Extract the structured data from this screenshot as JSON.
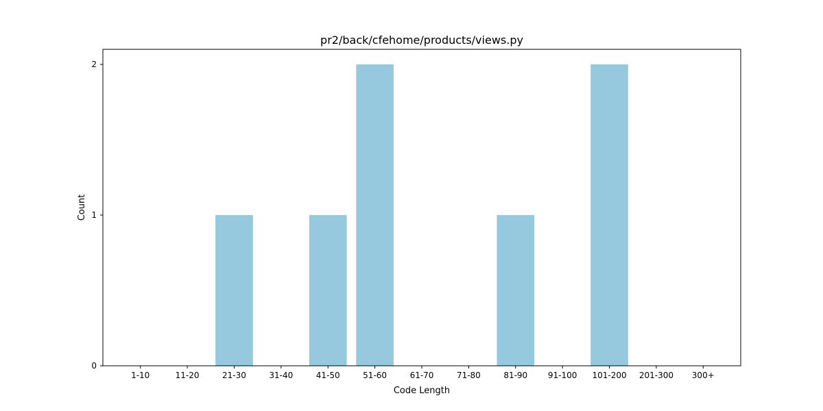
{
  "chart_data": {
    "type": "bar",
    "title": "pr2/back/cfehome/products/views.py",
    "xlabel": "Code Length",
    "ylabel": "Count",
    "categories": [
      "1-10",
      "11-20",
      "21-30",
      "31-40",
      "41-50",
      "51-60",
      "61-70",
      "71-80",
      "81-90",
      "91-100",
      "101-200",
      "201-300",
      "300+"
    ],
    "values": [
      0,
      0,
      1,
      0,
      1,
      2,
      0,
      0,
      1,
      0,
      2,
      0,
      0
    ],
    "yticks": [
      0,
      1,
      2
    ],
    "ytick_labels": [
      "0",
      "1",
      "2"
    ],
    "ylim": [
      0,
      2.1
    ],
    "grid": false,
    "bar_color": "#96c9dd"
  }
}
